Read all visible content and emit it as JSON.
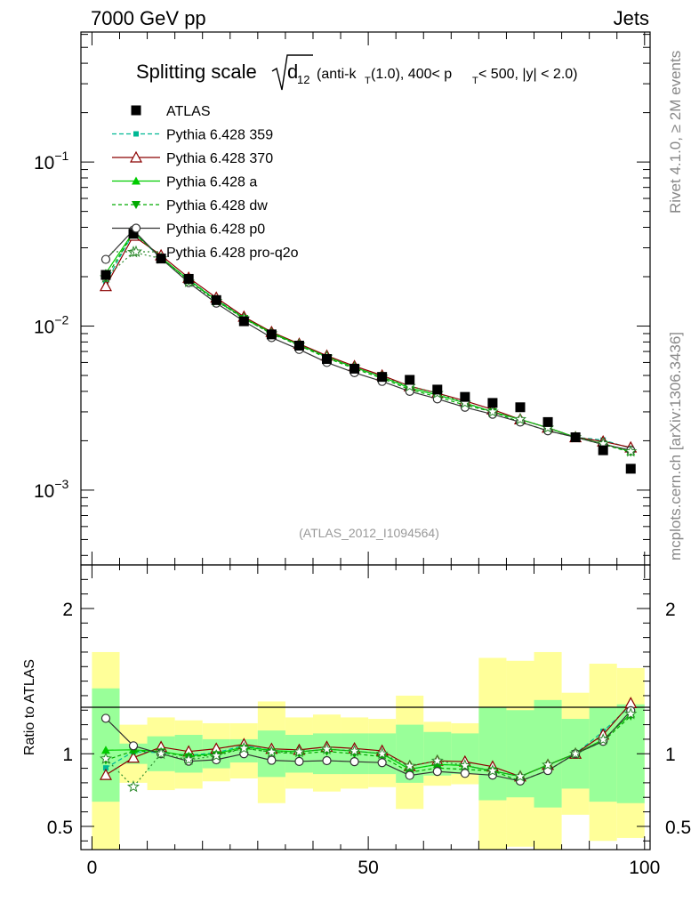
{
  "header": {
    "left_label": "7000 GeV pp",
    "right_label": "Jets"
  },
  "side_labels": {
    "rivet": "Rivet 4.1.0, ≥ 2M events",
    "mcplots": "mcplots.cern.ch [arXiv:1306.3436]"
  },
  "reference_label": "(ATLAS_2012_I1094564)",
  "ratio_axis_label": "Ratio to ATLAS",
  "chart_data": {
    "type": "line",
    "title": "Splitting scale √d12 (anti-kT(1.0), 400< pT < 500, |y| < 2.0)",
    "title_parts": {
      "main": "Splitting scale",
      "var": "d",
      "var_sub": "12",
      "open": "(anti-k",
      "k_sub": "T",
      "mid": "(1.0), 400< p",
      "p_sub": "T",
      "end": " < 500, |y| < 2.0)"
    },
    "xlabel": "",
    "ylabel": "",
    "xlim": [
      -2,
      101
    ],
    "ylim": [
      0.00035,
      0.62
    ],
    "yscale": "log",
    "x_ticks": [
      0,
      50,
      100
    ],
    "x_tick_labels": [
      "0",
      "50",
      "100"
    ],
    "y_ticks_major": [
      0.001,
      0.01,
      0.1
    ],
    "y_tick_labels": [
      "10^-3",
      "10^-2",
      "10^-1"
    ],
    "x": [
      2.5,
      7.5,
      12.5,
      17.5,
      22.5,
      27.5,
      32.5,
      37.5,
      42.5,
      47.5,
      52.5,
      57.5,
      62.5,
      67.5,
      72.5,
      77.5,
      82.5,
      87.5,
      92.5,
      97.5
    ],
    "data": {
      "name": "ATLAS",
      "values": [
        0.0205,
        0.0365,
        0.0258,
        0.0194,
        0.0144,
        0.0107,
        0.0089,
        0.0076,
        0.0063,
        0.0055,
        0.0049,
        0.0047,
        0.0041,
        0.0037,
        0.0034,
        0.0032,
        0.0026,
        0.0021,
        0.00175,
        0.00135
      ]
    },
    "series": [
      {
        "name": "Pythia 6.428 359",
        "color": "#00b894",
        "dash": "5,3",
        "marker": "square-small",
        "values": [
          0.0185,
          0.037,
          0.026,
          0.0192,
          0.0145,
          0.0113,
          0.0091,
          0.0077,
          0.0065,
          0.0056,
          0.0049,
          0.0042,
          0.0038,
          0.0034,
          0.003,
          0.0027,
          0.0024,
          0.0021,
          0.00202,
          0.0018
        ]
      },
      {
        "name": "Pythia 6.428 370",
        "color": "#8b0000",
        "dash": "",
        "marker": "triangle-open",
        "values": [
          0.0175,
          0.0355,
          0.027,
          0.0197,
          0.0149,
          0.0114,
          0.0092,
          0.0078,
          0.0066,
          0.0057,
          0.005,
          0.0043,
          0.0039,
          0.0035,
          0.0031,
          0.0027,
          0.0024,
          0.0021,
          0.00198,
          0.00182
        ]
      },
      {
        "name": "Pythia 6.428 a",
        "color": "#00cc00",
        "dash": "",
        "marker": "triangle-filled",
        "values": [
          0.021,
          0.0375,
          0.0262,
          0.0191,
          0.0144,
          0.0112,
          0.0091,
          0.0077,
          0.0065,
          0.0056,
          0.0049,
          0.0042,
          0.0038,
          0.0034,
          0.003,
          0.0027,
          0.0024,
          0.0021,
          0.00192,
          0.00172
        ]
      },
      {
        "name": "Pythia 6.428 dw",
        "color": "#00aa00",
        "dash": "4,3",
        "marker": "triangle-down",
        "values": [
          0.0196,
          0.0372,
          0.0261,
          0.019,
          0.0143,
          0.0111,
          0.009,
          0.0076,
          0.0064,
          0.0055,
          0.0048,
          0.0041,
          0.0037,
          0.0033,
          0.003,
          0.0026,
          0.0023,
          0.0021,
          0.0019,
          0.0017
        ]
      },
      {
        "name": "Pythia 6.428 p0",
        "color": "#333333",
        "dash": "",
        "marker": "circle-open",
        "values": [
          0.0255,
          0.0385,
          0.0258,
          0.0184,
          0.0138,
          0.0107,
          0.0085,
          0.0072,
          0.006,
          0.0052,
          0.0046,
          0.004,
          0.0036,
          0.0032,
          0.0029,
          0.0026,
          0.0023,
          0.0021,
          0.0019,
          0.00175
        ]
      },
      {
        "name": "Pythia 6.428 pro-q2o",
        "color": "#2e8b2e",
        "dash": "2,3",
        "marker": "star",
        "values": [
          0.0198,
          0.0282,
          0.0258,
          0.0186,
          0.0142,
          0.0111,
          0.009,
          0.0077,
          0.0065,
          0.0056,
          0.0049,
          0.0043,
          0.0039,
          0.0034,
          0.003,
          0.0027,
          0.0024,
          0.0021,
          0.00192,
          0.00172
        ]
      }
    ],
    "ratio_panel": {
      "ylabel": "Ratio to ATLAS",
      "ylim": [
        0.34,
        2.3
      ],
      "y_ticks": [
        0.5,
        1,
        2
      ],
      "y_tick_labels": [
        "0.5",
        "1",
        "2"
      ],
      "bin_edges": [
        0,
        5,
        10,
        15,
        20,
        25,
        30,
        35,
        40,
        45,
        50,
        55,
        60,
        65,
        70,
        75,
        80,
        85,
        90,
        95,
        100
      ],
      "green_band_lo": [
        0.67,
        0.93,
        0.88,
        0.87,
        0.9,
        0.94,
        0.84,
        0.87,
        0.86,
        0.86,
        0.86,
        0.8,
        0.85,
        0.86,
        0.68,
        0.7,
        0.63,
        0.76,
        0.67,
        0.66
      ],
      "green_band_hi": [
        1.45,
        1.07,
        1.12,
        1.13,
        1.1,
        1.1,
        1.16,
        1.13,
        1.14,
        1.14,
        1.14,
        1.2,
        1.15,
        1.14,
        1.32,
        1.3,
        1.37,
        1.24,
        1.32,
        1.34
      ],
      "yellow_band_lo": [
        0.34,
        0.8,
        0.75,
        0.76,
        0.81,
        0.83,
        0.66,
        0.76,
        0.74,
        0.76,
        0.77,
        0.62,
        0.78,
        0.79,
        0.34,
        0.36,
        0.34,
        0.58,
        0.4,
        0.42
      ],
      "yellow_band_hi": [
        1.7,
        1.2,
        1.25,
        1.23,
        1.21,
        1.21,
        1.36,
        1.25,
        1.27,
        1.25,
        1.24,
        1.4,
        1.22,
        1.21,
        1.66,
        1.64,
        1.7,
        1.42,
        1.62,
        1.59
      ]
    }
  }
}
